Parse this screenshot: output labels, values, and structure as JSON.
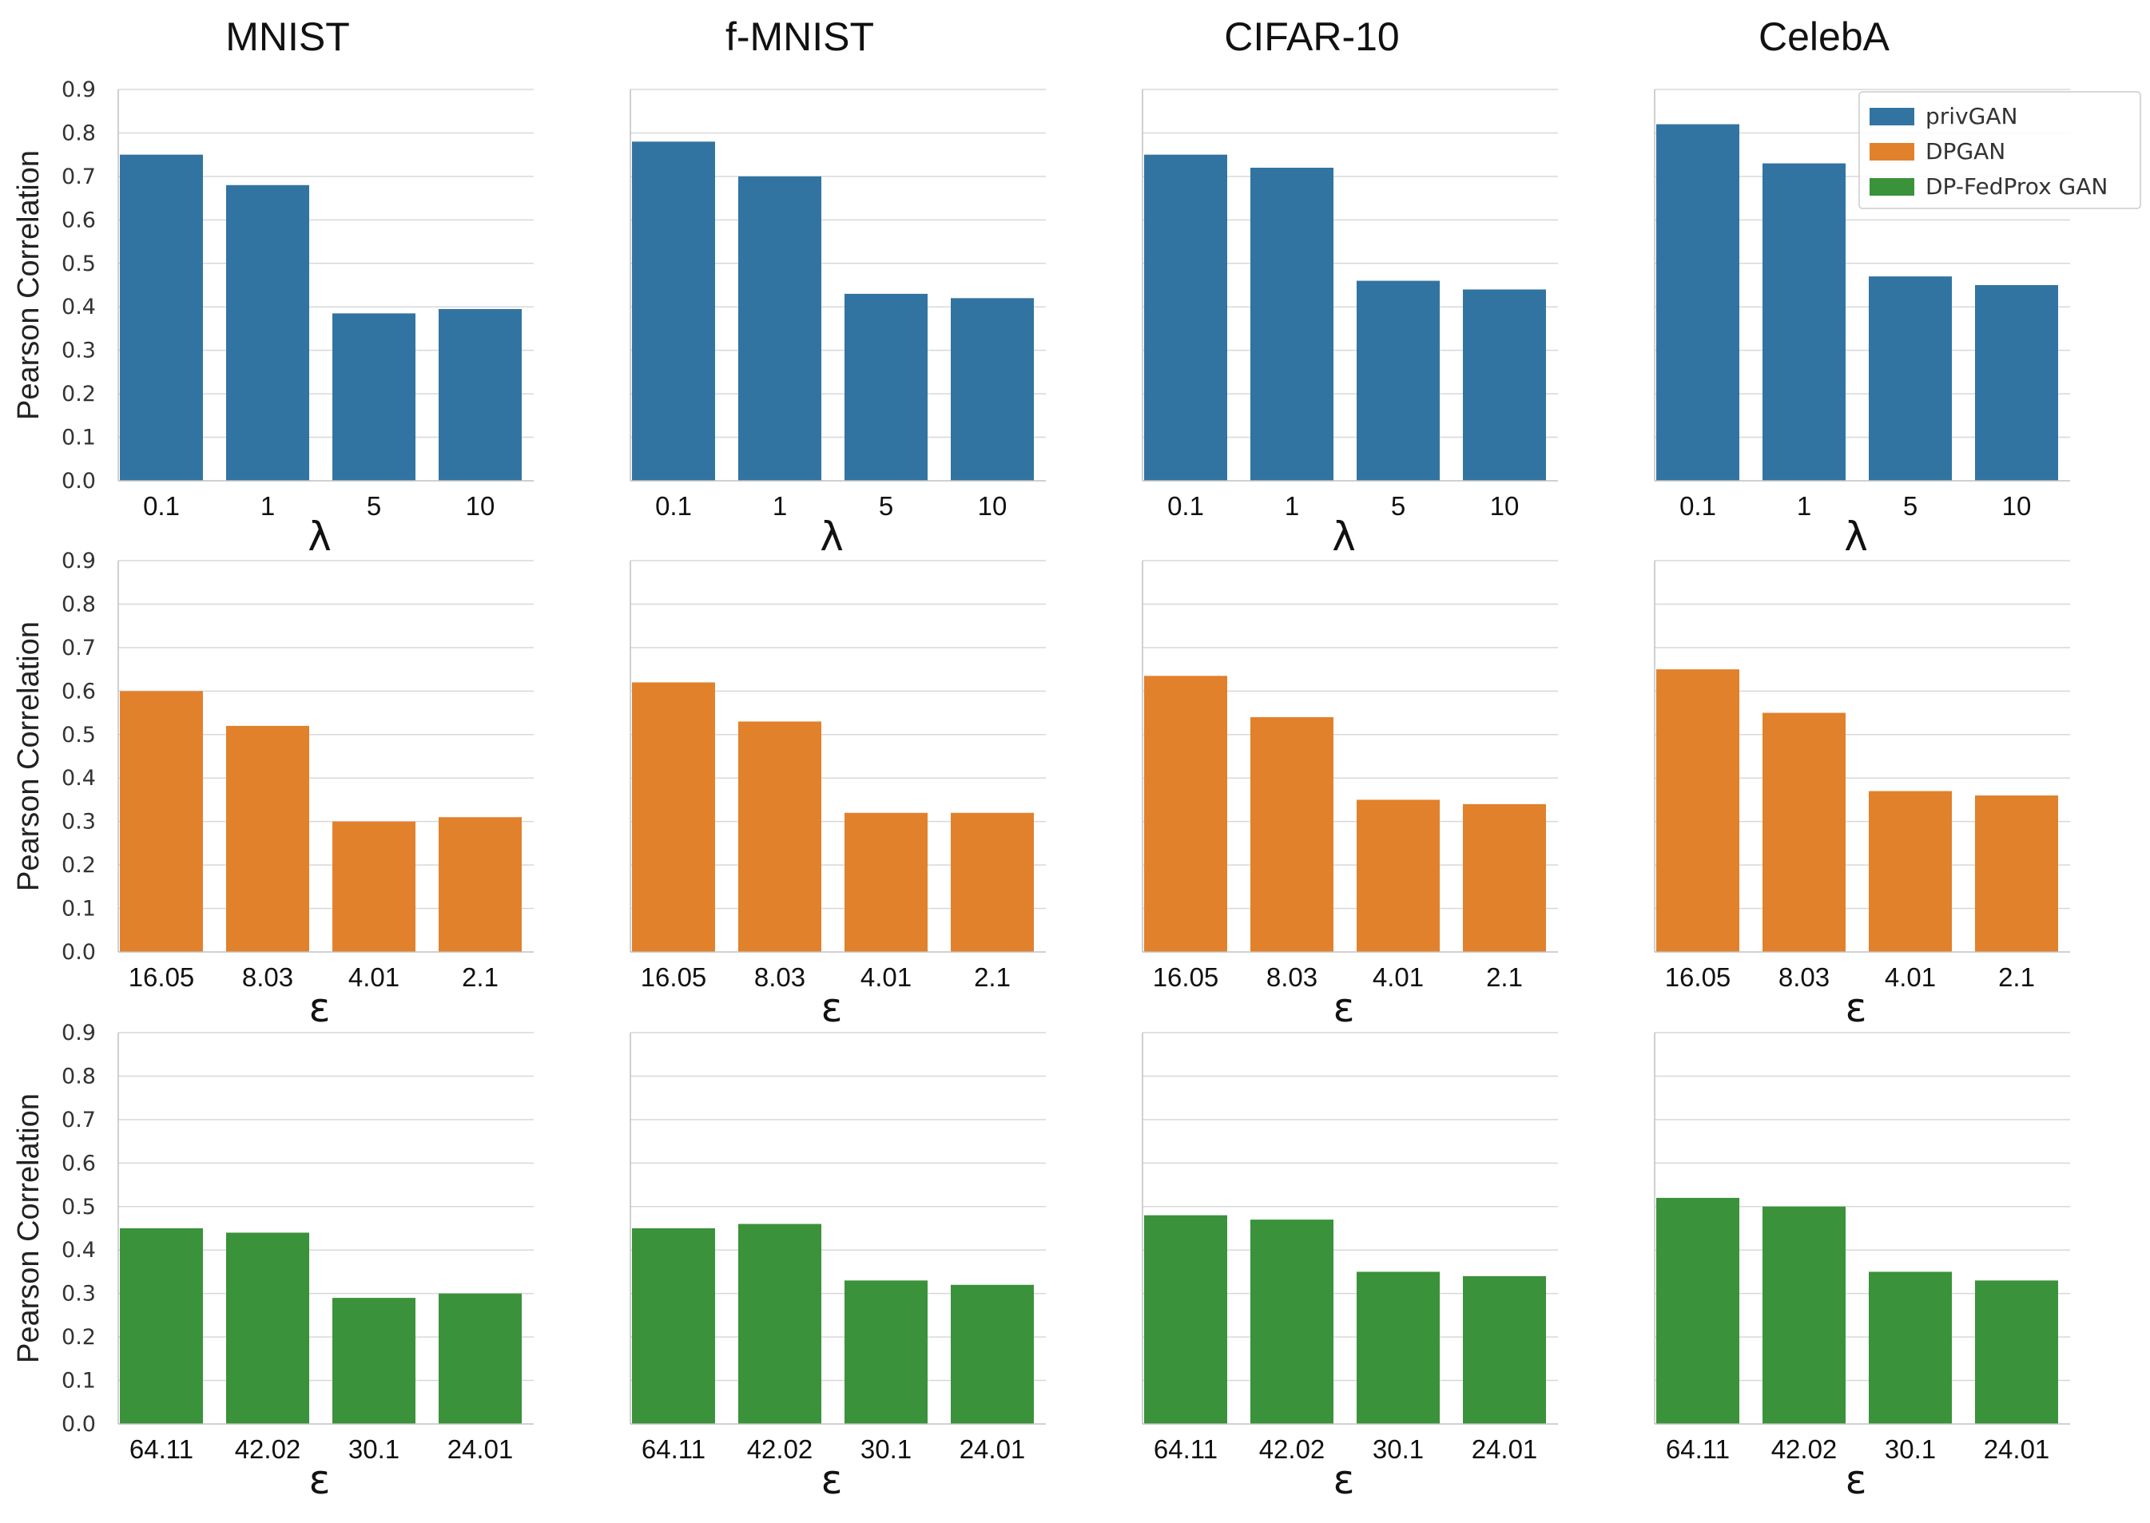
{
  "columns": [
    "MNIST",
    "f-MNIST",
    "CIFAR-10",
    "CelebA"
  ],
  "legend": [
    {
      "label": "privGAN",
      "color": "#3274a1"
    },
    {
      "label": "DPGAN",
      "color": "#e1812c"
    },
    {
      "label": "DP-FedProx GAN",
      "color": "#3a923a"
    }
  ],
  "y_axis": {
    "label": "Pearson Correlation",
    "ticks": [
      "0.0",
      "0.1",
      "0.2",
      "0.3",
      "0.4",
      "0.5",
      "0.6",
      "0.7",
      "0.8",
      "0.9"
    ]
  },
  "rows": [
    {
      "xlabel": "λ",
      "series": "privGAN",
      "color": "#3274a1",
      "categories": [
        "0.1",
        "1",
        "5",
        "10"
      ]
    },
    {
      "xlabel": "ε",
      "series": "DPGAN",
      "color": "#e1812c",
      "categories": [
        "16.05",
        "8.03",
        "4.01",
        "2.1"
      ]
    },
    {
      "xlabel": "ε",
      "series": "DP-FedProx GAN",
      "color": "#3a923a",
      "categories": [
        "64.11",
        "42.02",
        "30.1",
        "24.01"
      ]
    }
  ],
  "chart_data": [
    {
      "type": "bar",
      "title": "MNIST",
      "xlabel": "λ",
      "ylabel": "Pearson Correlation",
      "categories": [
        "0.1",
        "1",
        "5",
        "10"
      ],
      "series": [
        {
          "name": "privGAN",
          "values": [
            0.75,
            0.68,
            0.385,
            0.395
          ]
        }
      ],
      "ylim": [
        0,
        0.9
      ],
      "grid": true
    },
    {
      "type": "bar",
      "title": "f-MNIST",
      "xlabel": "λ",
      "ylabel": "",
      "categories": [
        "0.1",
        "1",
        "5",
        "10"
      ],
      "series": [
        {
          "name": "privGAN",
          "values": [
            0.78,
            0.7,
            0.43,
            0.42
          ]
        }
      ],
      "ylim": [
        0,
        0.9
      ],
      "grid": true
    },
    {
      "type": "bar",
      "title": "CIFAR-10",
      "xlabel": "λ",
      "ylabel": "",
      "categories": [
        "0.1",
        "1",
        "5",
        "10"
      ],
      "series": [
        {
          "name": "privGAN",
          "values": [
            0.75,
            0.72,
            0.46,
            0.44
          ]
        }
      ],
      "ylim": [
        0,
        0.9
      ],
      "grid": true
    },
    {
      "type": "bar",
      "title": "CelebA",
      "xlabel": "λ",
      "ylabel": "",
      "categories": [
        "0.1",
        "1",
        "5",
        "10"
      ],
      "series": [
        {
          "name": "privGAN",
          "values": [
            0.82,
            0.73,
            0.47,
            0.45
          ]
        }
      ],
      "ylim": [
        0,
        0.9
      ],
      "grid": true,
      "legend": "top-right"
    },
    {
      "type": "bar",
      "title": "",
      "xlabel": "ε",
      "ylabel": "Pearson Correlation",
      "categories": [
        "16.05",
        "8.03",
        "4.01",
        "2.1"
      ],
      "series": [
        {
          "name": "DPGAN",
          "values": [
            0.6,
            0.52,
            0.3,
            0.31
          ]
        }
      ],
      "ylim": [
        0,
        0.9
      ],
      "grid": true
    },
    {
      "type": "bar",
      "title": "",
      "xlabel": "ε",
      "ylabel": "",
      "categories": [
        "16.05",
        "8.03",
        "4.01",
        "2.1"
      ],
      "series": [
        {
          "name": "DPGAN",
          "values": [
            0.62,
            0.53,
            0.32,
            0.32
          ]
        }
      ],
      "ylim": [
        0,
        0.9
      ],
      "grid": true
    },
    {
      "type": "bar",
      "title": "",
      "xlabel": "ε",
      "ylabel": "",
      "categories": [
        "16.05",
        "8.03",
        "4.01",
        "2.1"
      ],
      "series": [
        {
          "name": "DPGAN",
          "values": [
            0.635,
            0.54,
            0.35,
            0.34
          ]
        }
      ],
      "ylim": [
        0,
        0.9
      ],
      "grid": true
    },
    {
      "type": "bar",
      "title": "",
      "xlabel": "ε",
      "ylabel": "",
      "categories": [
        "16.05",
        "8.03",
        "4.01",
        "2.1"
      ],
      "series": [
        {
          "name": "DPGAN",
          "values": [
            0.65,
            0.55,
            0.37,
            0.36
          ]
        }
      ],
      "ylim": [
        0,
        0.9
      ],
      "grid": true
    },
    {
      "type": "bar",
      "title": "",
      "xlabel": "ε",
      "ylabel": "Pearson Correlation",
      "categories": [
        "64.11",
        "42.02",
        "30.1",
        "24.01"
      ],
      "series": [
        {
          "name": "DP-FedProx GAN",
          "values": [
            0.45,
            0.44,
            0.29,
            0.3
          ]
        }
      ],
      "ylim": [
        0,
        0.9
      ],
      "grid": true
    },
    {
      "type": "bar",
      "title": "",
      "xlabel": "ε",
      "ylabel": "",
      "categories": [
        "64.11",
        "42.02",
        "30.1",
        "24.01"
      ],
      "series": [
        {
          "name": "DP-FedProx GAN",
          "values": [
            0.45,
            0.46,
            0.33,
            0.32
          ]
        }
      ],
      "ylim": [
        0,
        0.9
      ],
      "grid": true
    },
    {
      "type": "bar",
      "title": "",
      "xlabel": "ε",
      "ylabel": "",
      "categories": [
        "64.11",
        "42.02",
        "30.1",
        "24.01"
      ],
      "series": [
        {
          "name": "DP-FedProx GAN",
          "values": [
            0.48,
            0.47,
            0.35,
            0.34
          ]
        }
      ],
      "ylim": [
        0,
        0.9
      ],
      "grid": true
    },
    {
      "type": "bar",
      "title": "",
      "xlabel": "ε",
      "ylabel": "",
      "categories": [
        "64.11",
        "42.02",
        "30.1",
        "24.01"
      ],
      "series": [
        {
          "name": "DP-FedProx GAN",
          "values": [
            0.52,
            0.5,
            0.35,
            0.33
          ]
        }
      ],
      "ylim": [
        0,
        0.9
      ],
      "grid": true
    }
  ]
}
